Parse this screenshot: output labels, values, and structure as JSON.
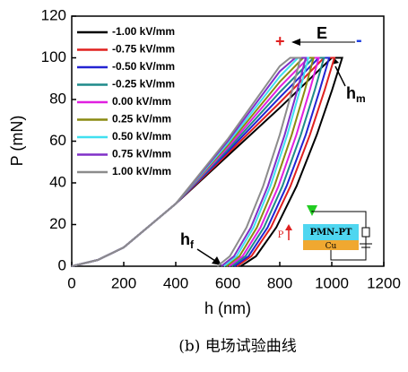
{
  "chart_data": {
    "type": "line",
    "xlabel": "h (nm)",
    "ylabel": "P (mN)",
    "xlim": [
      0,
      1200
    ],
    "ylim": [
      0,
      120
    ],
    "xticks": [
      0,
      200,
      400,
      600,
      800,
      1000,
      1200
    ],
    "yticks": [
      0,
      20,
      40,
      60,
      80,
      100,
      120
    ],
    "legend": "upper left",
    "series": [
      {
        "name": "-1.00 kV/mm",
        "color": "#000000",
        "x": [
          0,
          100,
          200,
          400,
          600,
          800,
          1000,
          1040,
          1001,
          942.5,
          864.5,
          786.5,
          708.5,
          650
        ],
        "values": [
          0,
          3,
          9,
          30,
          53,
          76,
          100,
          100,
          84.5,
          63.1,
          38.4,
          18.6,
          4.8,
          0
        ]
      },
      {
        "name": "-0.75 kV/mm",
        "color": "#e0201e",
        "x": [
          0,
          100,
          200,
          400,
          600,
          800,
          970,
          1010,
          972.5,
          916,
          841,
          766,
          691,
          635
        ],
        "values": [
          0,
          3,
          9,
          30,
          54,
          78.5,
          100,
          100,
          84.5,
          63.1,
          38.4,
          18.6,
          4.8,
          0
        ]
      },
      {
        "name": "-0.50 kV/mm",
        "color": "#2323d2",
        "x": [
          0,
          100,
          200,
          400,
          600,
          800,
          950,
          990,
          953.5,
          900,
          826,
          753,
          680,
          625
        ],
        "values": [
          0,
          3,
          9,
          30,
          55,
          81,
          100,
          100,
          84.5,
          63.1,
          38.4,
          18.6,
          4.8,
          0
        ]
      },
      {
        "name": "-0.25 kV/mm",
        "color": "#1f8a8a",
        "x": [
          0,
          100,
          200,
          400,
          600,
          800,
          930,
          970,
          934.5,
          881,
          810,
          739,
          668,
          615
        ],
        "values": [
          0,
          3,
          9,
          30,
          56,
          83.5,
          100,
          100,
          84.5,
          63.1,
          38.4,
          18.6,
          4.8,
          0
        ]
      },
      {
        "name": "0.00 kV/mm",
        "color": "#e020e0",
        "x": [
          0,
          100,
          200,
          400,
          600,
          800,
          910,
          950,
          915.5,
          864,
          795,
          726,
          657,
          605
        ],
        "values": [
          0,
          3,
          9,
          30,
          57,
          86,
          100,
          100,
          84.5,
          63.1,
          38.4,
          18.6,
          4.8,
          0
        ]
      },
      {
        "name": "0.25 kV/mm",
        "color": "#8a8a10",
        "x": [
          0,
          100,
          200,
          400,
          600,
          800,
          890,
          930,
          896.5,
          846,
          779,
          712,
          645,
          595
        ],
        "values": [
          0,
          3,
          9,
          30,
          58,
          88.5,
          100,
          100,
          84.5,
          63.1,
          38.4,
          18.6,
          4.8,
          0
        ]
      },
      {
        "name": "0.50 kV/mm",
        "color": "#40e0f0",
        "x": [
          0,
          100,
          200,
          400,
          600,
          800,
          870,
          910,
          877.5,
          829,
          764,
          699,
          634,
          585
        ],
        "values": [
          0,
          3,
          9,
          30,
          59,
          91,
          100,
          100,
          84.5,
          63.1,
          38.4,
          18.6,
          4.8,
          0
        ]
      },
      {
        "name": "0.75 kV/mm",
        "color": "#8030c8",
        "x": [
          0,
          100,
          200,
          400,
          600,
          800,
          860,
          900,
          867.5,
          819,
          754,
          689,
          624,
          575
        ],
        "values": [
          0,
          3,
          9,
          30,
          60,
          93.5,
          100,
          100,
          84.5,
          63.1,
          38.4,
          18.6,
          4.8,
          0
        ]
      },
      {
        "name": "1.00 kV/mm",
        "color": "#8c8c8c",
        "x": [
          0,
          100,
          200,
          400,
          600,
          800,
          840,
          880,
          848,
          800,
          736,
          672,
          608,
          560
        ],
        "values": [
          0,
          3,
          9,
          30,
          61,
          96,
          100,
          100,
          84.5,
          63.1,
          38.4,
          18.6,
          4.8,
          0
        ]
      }
    ],
    "annotations": [
      {
        "text": "E"
      },
      {
        "text": "+"
      },
      {
        "text": "-"
      },
      {
        "text": "h",
        "sub": "m"
      },
      {
        "text": "h",
        "sub": "f"
      },
      {
        "text": "PMN-PT"
      },
      {
        "text": "Cu"
      },
      {
        "text": "P"
      }
    ],
    "caption": "(b) 电场试验曲线"
  }
}
